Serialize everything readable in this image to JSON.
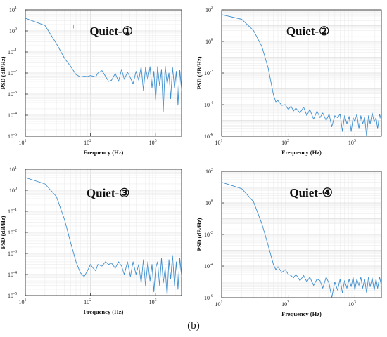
{
  "caption": "(b)",
  "chart_data": [
    {
      "type": "line",
      "title": "Quiet-①",
      "xlabel": "Frequency (Hz)",
      "ylabel": "PSD (dB/Hz)",
      "xscale": "log",
      "yscale": "log",
      "xlim": [
        10,
        2500
      ],
      "ylim": [
        1e-05,
        10
      ],
      "grid": true,
      "xticks": [
        "10^1",
        "10^2",
        "10^3"
      ],
      "yticks": [
        "10^-5",
        "10^-4",
        "10^-3",
        "10^-2",
        "10^-1",
        "10^0",
        "10^1"
      ],
      "annotation": "+",
      "annotation_at": [
        55,
        1.5
      ],
      "series": [
        {
          "color": "#3f8fcf",
          "x": [
            10,
            20,
            30,
            40,
            50,
            60,
            70,
            80,
            90,
            100,
            110,
            120,
            130,
            150,
            170,
            190,
            210,
            240,
            270,
            300,
            330,
            370,
            410,
            450,
            500,
            550,
            600,
            650,
            700,
            760,
            820,
            880,
            940,
            1000,
            1070,
            1150,
            1230,
            1310,
            1400,
            1500,
            1600,
            1700,
            1820,
            1950,
            2080,
            2200,
            2350,
            2500
          ],
          "y": [
            4,
            1.8,
            0.25,
            0.05,
            0.02,
            0.0085,
            0.0065,
            0.007,
            0.0068,
            0.0075,
            0.007,
            0.0065,
            0.01,
            0.013,
            0.007,
            0.004,
            0.0045,
            0.0095,
            0.004,
            0.015,
            0.005,
            0.011,
            0.006,
            0.003,
            0.012,
            0.0045,
            0.02,
            0.0015,
            0.018,
            0.005,
            0.02,
            0.002,
            0.012,
            0.0005,
            0.02,
            0.0025,
            0.015,
            0.00015,
            0.022,
            0.003,
            0.01,
            0.0006,
            0.018,
            0.002,
            0.012,
            0.0003,
            0.014,
            0.0015
          ]
        }
      ]
    },
    {
      "type": "line",
      "title": "Quiet-②",
      "xlabel": "Frequency (Hz)",
      "ylabel": "PSD (dB/Hz)",
      "xscale": "log",
      "yscale": "log",
      "xlim": [
        10,
        2500
      ],
      "ylim": [
        1e-06,
        100
      ],
      "grid": true,
      "xticks": [
        "10^1",
        "10^2",
        "10^3"
      ],
      "yticks": [
        "10^-6",
        "10^-4",
        "10^-2",
        "10^0",
        "10^2"
      ],
      "series": [
        {
          "color": "#3f8fcf",
          "x": [
            10,
            20,
            30,
            40,
            50,
            60,
            65,
            70,
            80,
            90,
            100,
            110,
            120,
            130,
            150,
            170,
            190,
            210,
            240,
            270,
            300,
            330,
            370,
            410,
            450,
            500,
            550,
            600,
            650,
            700,
            760,
            820,
            880,
            940,
            1000,
            1070,
            1150,
            1230,
            1310,
            1400,
            1500,
            1600,
            1700,
            1820,
            1950,
            2080,
            2200,
            2350,
            2500
          ],
          "y": [
            50,
            25,
            5,
            0.5,
            0.02,
            0.0004,
            0.00015,
            0.00018,
            9e-05,
            0.0001,
            5e-05,
            8e-05,
            4e-05,
            6e-05,
            3e-05,
            7e-05,
            2e-05,
            5e-05,
            1.2e-05,
            4e-05,
            1.5e-05,
            3e-05,
            1e-05,
            2.5e-05,
            4e-06,
            2e-05,
            1.5e-05,
            2.5e-05,
            2e-06,
            2e-05,
            6e-06,
            1.8e-05,
            2e-06,
            1.5e-05,
            8e-06,
            2.5e-05,
            3e-06,
            2e-05,
            6e-06,
            1.5e-05,
            1e-06,
            2e-05,
            6e-06,
            3e-05,
            8e-06,
            1.5e-05,
            3e-06,
            2.5e-05,
            1e-05
          ]
        }
      ]
    },
    {
      "type": "line",
      "title": "Quiet-③",
      "xlabel": "Frequency (Hz)",
      "ylabel": "PSD (dB/Hz)",
      "xscale": "log",
      "yscale": "log",
      "xlim": [
        10,
        2500
      ],
      "ylim": [
        1e-05,
        10
      ],
      "grid": true,
      "xticks": [
        "10^1",
        "10^2",
        "10^3"
      ],
      "yticks": [
        "10^-5",
        "10^-4",
        "10^-3",
        "10^-2",
        "10^-1",
        "10^0",
        "10^1"
      ],
      "series": [
        {
          "color": "#3f8fcf",
          "x": [
            10,
            20,
            30,
            40,
            50,
            60,
            70,
            80,
            90,
            100,
            110,
            120,
            130,
            150,
            170,
            190,
            210,
            240,
            270,
            300,
            330,
            370,
            410,
            450,
            500,
            550,
            600,
            650,
            700,
            760,
            820,
            880,
            940,
            1000,
            1070,
            1150,
            1230,
            1310,
            1400,
            1500,
            1600,
            1700,
            1820,
            1950,
            2080,
            2200,
            2350,
            2500
          ],
          "y": [
            4,
            2,
            0.5,
            0.04,
            0.003,
            0.0004,
            0.00012,
            8e-05,
            0.00015,
            0.0003,
            0.0002,
            0.00015,
            0.0003,
            0.00025,
            0.0004,
            0.0003,
            0.00035,
            0.0002,
            0.0004,
            0.00025,
            0.0001,
            0.0004,
            8e-05,
            0.0004,
            0.0001,
            0.0003,
            4e-05,
            0.0005,
            3e-05,
            0.0004,
            5e-05,
            0.0003,
            1.5e-05,
            0.0002,
            0.0004,
            3e-05,
            0.0006,
            4e-05,
            0.0002,
            1e-05,
            0.0005,
            6e-05,
            0.0008,
            3e-05,
            0.0004,
            2e-05,
            0.0006,
            8e-05
          ]
        }
      ]
    },
    {
      "type": "line",
      "title": "Quiet-④",
      "xlabel": "Frequency (Hz)",
      "ylabel": "PSD (dB/Hz)",
      "xscale": "log",
      "yscale": "log",
      "xlim": [
        10,
        2500
      ],
      "ylim": [
        1e-06,
        100
      ],
      "grid": true,
      "xticks": [
        "10^1",
        "10^2",
        "10^3"
      ],
      "yticks": [
        "10^-6",
        "10^-4",
        "10^-2",
        "10^0",
        "10^2"
      ],
      "series": [
        {
          "color": "#3f8fcf",
          "x": [
            10,
            20,
            30,
            40,
            50,
            60,
            65,
            70,
            80,
            90,
            100,
            110,
            120,
            130,
            150,
            170,
            190,
            210,
            240,
            270,
            300,
            330,
            370,
            410,
            450,
            500,
            550,
            600,
            650,
            700,
            760,
            820,
            880,
            940,
            1000,
            1070,
            1150,
            1230,
            1310,
            1400,
            1500,
            1600,
            1700,
            1820,
            1950,
            2080,
            2200,
            2350,
            2500
          ],
          "y": [
            20,
            8,
            1.2,
            0.05,
            0.002,
            0.00012,
            6e-05,
            9e-05,
            4e-05,
            6e-05,
            3e-05,
            2.5e-05,
            1.8e-05,
            3e-05,
            1.2e-05,
            2.5e-05,
            1e-05,
            2e-05,
            6e-06,
            1.5e-05,
            1.2e-05,
            4e-06,
            2e-05,
            8e-06,
            1e-06,
            1e-05,
            3e-06,
            1.5e-05,
            2e-06,
            1.2e-05,
            4e-06,
            1.5e-05,
            5e-06,
            2e-05,
            3e-06,
            1.5e-05,
            6e-06,
            2e-05,
            4e-06,
            1.5e-05,
            2e-06,
            2e-05,
            5e-06,
            1.8e-05,
            3e-06,
            1.5e-05,
            4e-06,
            2e-05,
            6e-06
          ]
        }
      ]
    }
  ]
}
